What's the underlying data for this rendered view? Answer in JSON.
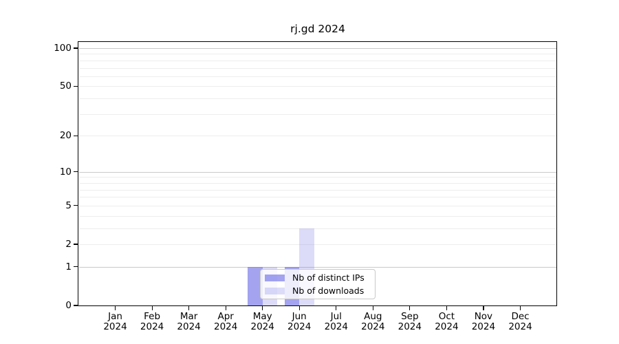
{
  "chart_data": {
    "type": "bar",
    "title": "rj.gd 2024",
    "x": {
      "categories": [
        "Jan",
        "Feb",
        "Mar",
        "Apr",
        "May",
        "Jun",
        "Jul",
        "Aug",
        "Sep",
        "Oct",
        "Nov",
        "Dec"
      ],
      "year_label": "2024"
    },
    "series": [
      {
        "name": "Nb of distinct IPs",
        "color": "rgba(102,102,230,0.60)",
        "values": [
          0,
          0,
          0,
          0,
          1,
          1,
          0,
          0,
          0,
          0,
          0,
          0
        ]
      },
      {
        "name": "Nb of downloads",
        "color": "rgba(102,102,230,0.23)",
        "values": [
          0,
          0,
          0,
          0,
          1,
          3,
          0,
          0,
          0,
          0,
          0,
          0
        ]
      }
    ],
    "y_axis": {
      "scale": "log1p",
      "tick_values": [
        0,
        1,
        2,
        5,
        10,
        20,
        50,
        100
      ],
      "ylim": [
        0,
        112
      ]
    },
    "grid": {
      "major_values": [
        1,
        10,
        100
      ],
      "minor_values": [
        2,
        3,
        4,
        5,
        6,
        7,
        8,
        9,
        20,
        30,
        40,
        50,
        60,
        70,
        80,
        90
      ],
      "major_color": "#c9c9c9",
      "minor_color": "#ededed"
    },
    "legend": {
      "position": "lower center"
    },
    "colors": {
      "axis": "#000000",
      "background": "#ffffff"
    }
  }
}
